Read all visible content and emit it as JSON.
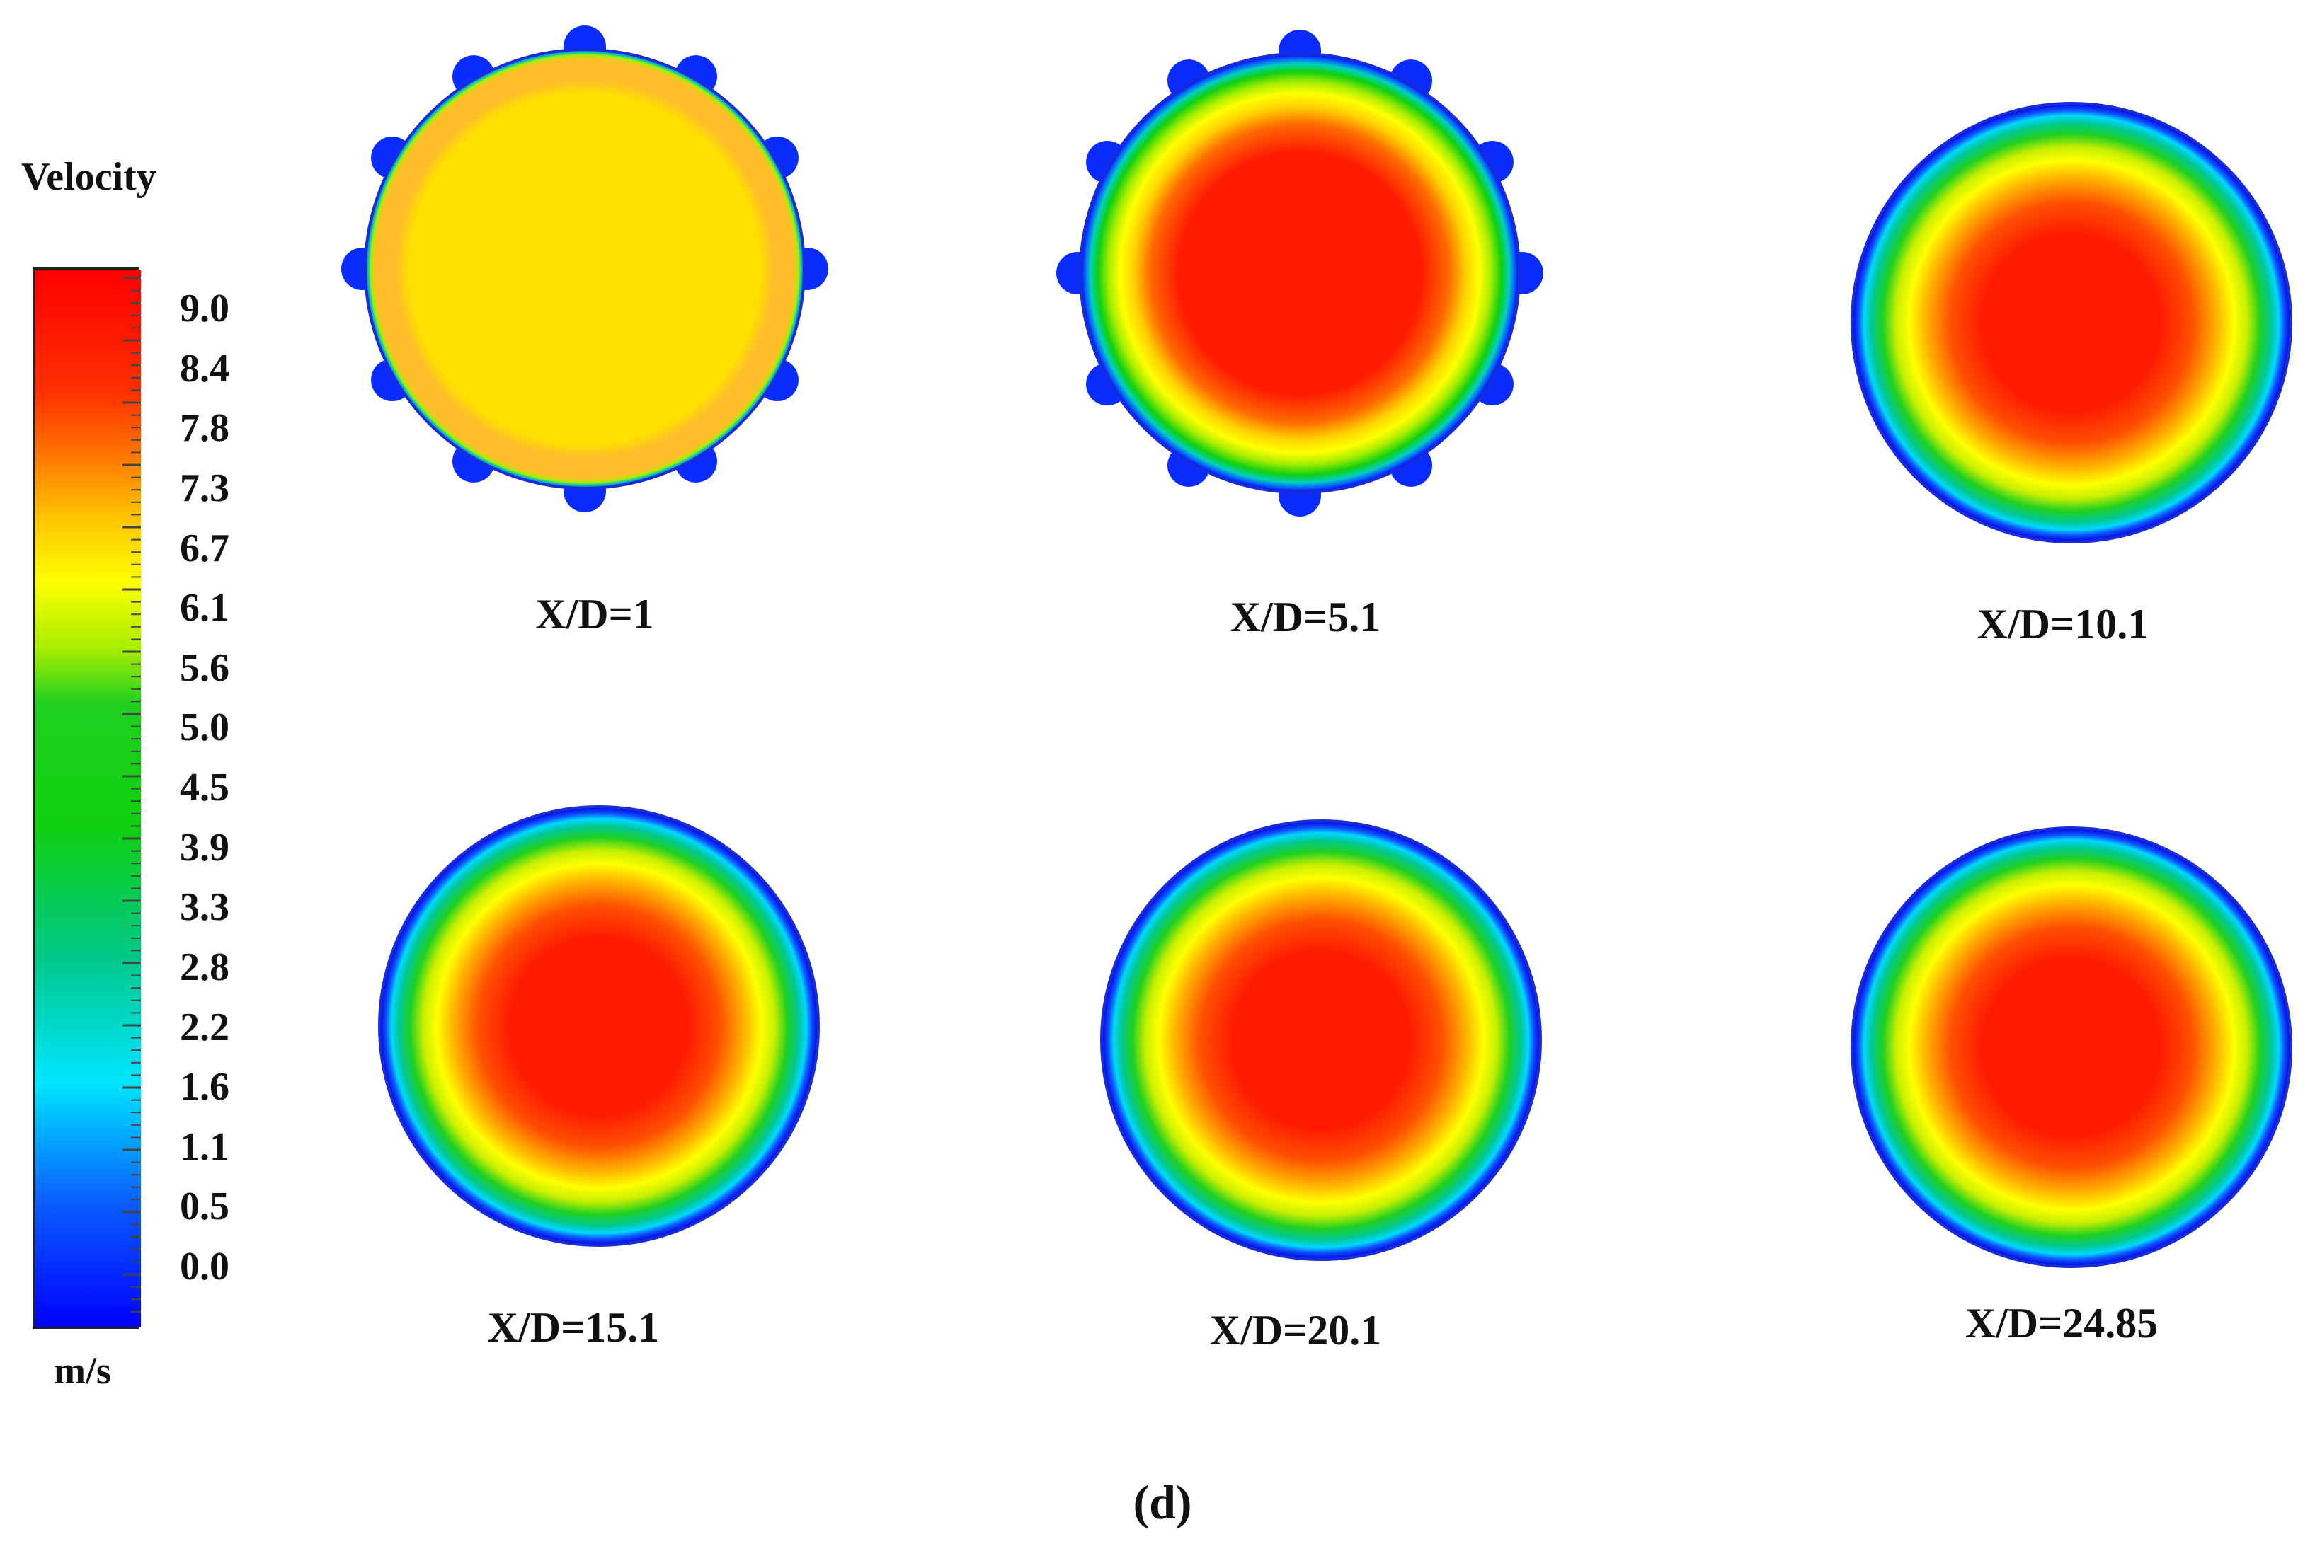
{
  "chart_data": {
    "type": "heatmap",
    "legend": {
      "title": "Velocity",
      "unit": "m/s",
      "ticks": [
        "9.0",
        "8.4",
        "7.8",
        "7.3",
        "6.7",
        "6.1",
        "5.6",
        "5.0",
        "4.5",
        "3.9",
        "3.3",
        "2.8",
        "2.2",
        "1.6",
        "1.1",
        "0.5",
        "0.0"
      ],
      "range": [
        0.0,
        9.5
      ]
    },
    "color_stops": [
      {
        "value": 0.0,
        "color": "#0000ff"
      },
      {
        "value": 1.1,
        "color": "#0a5cff"
      },
      {
        "value": 2.2,
        "color": "#00e6ff"
      },
      {
        "value": 3.3,
        "color": "#00c88c"
      },
      {
        "value": 4.5,
        "color": "#10d010"
      },
      {
        "value": 5.6,
        "color": "#20d020"
      },
      {
        "value": 6.1,
        "color": "#a8ee00"
      },
      {
        "value": 6.7,
        "color": "#ffff00"
      },
      {
        "value": 7.3,
        "color": "#ffc000"
      },
      {
        "value": 7.8,
        "color": "#ff7a00"
      },
      {
        "value": 8.4,
        "color": "#ff3000"
      },
      {
        "value": 9.5,
        "color": "#ff0000"
      }
    ],
    "panels": [
      {
        "label": "X/D=1",
        "core_color": "#ffe000",
        "ring_color": "#ffbe2a",
        "has_nozzles": true,
        "profile": "flat"
      },
      {
        "label": "X/D=5.1",
        "core_color": "#ff1a00",
        "has_nozzles": true,
        "profile": "developing"
      },
      {
        "label": "X/D=10.1",
        "core_color": "#ff1a00",
        "has_nozzles": false,
        "profile": "developed"
      },
      {
        "label": "X/D=15.1",
        "core_color": "#ff1a00",
        "has_nozzles": false,
        "profile": "developed"
      },
      {
        "label": "X/D=20.1",
        "core_color": "#ff1a00",
        "has_nozzles": false,
        "profile": "developed"
      },
      {
        "label": "X/D=24.85",
        "core_color": "#ff1a00",
        "has_nozzles": false,
        "profile": "developed"
      }
    ]
  },
  "figure_label": "(d)"
}
